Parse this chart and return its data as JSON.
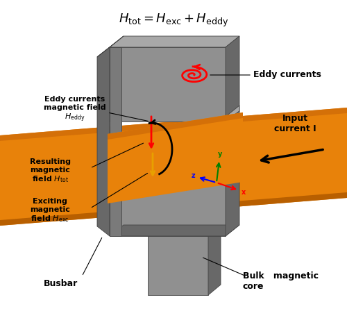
{
  "title_formula": "$H_\\mathrm{tot} = H_\\mathrm{exc} + H_\\mathrm{eddy}$",
  "bg_color": "#ffffff",
  "orange_color": "#E8820A",
  "orange_dark": "#B85F00",
  "orange_mid": "#D47008",
  "gray1": "#7a7a7a",
  "gray2": "#909090",
  "gray3": "#a8a8a8",
  "gray4": "#c0c0c0",
  "gray5": "#686868",
  "gray6": "#585858",
  "labels": {
    "eddy_currents_field": "Eddy currents\nmagnetic field\n$H_\\mathrm{eddy}$",
    "eddy_currents": "Eddy currents",
    "resulting_field": "Resulting\nmagnetic\nfield $H_\\mathrm{tot}$",
    "exciting_field": "Exciting\nmagnetic\nfield $H_\\mathrm{exc}$",
    "input_current": "Input\ncurrent I",
    "busbar": "Busbar",
    "bulk_core": "Bulk   magnetic\ncore"
  }
}
